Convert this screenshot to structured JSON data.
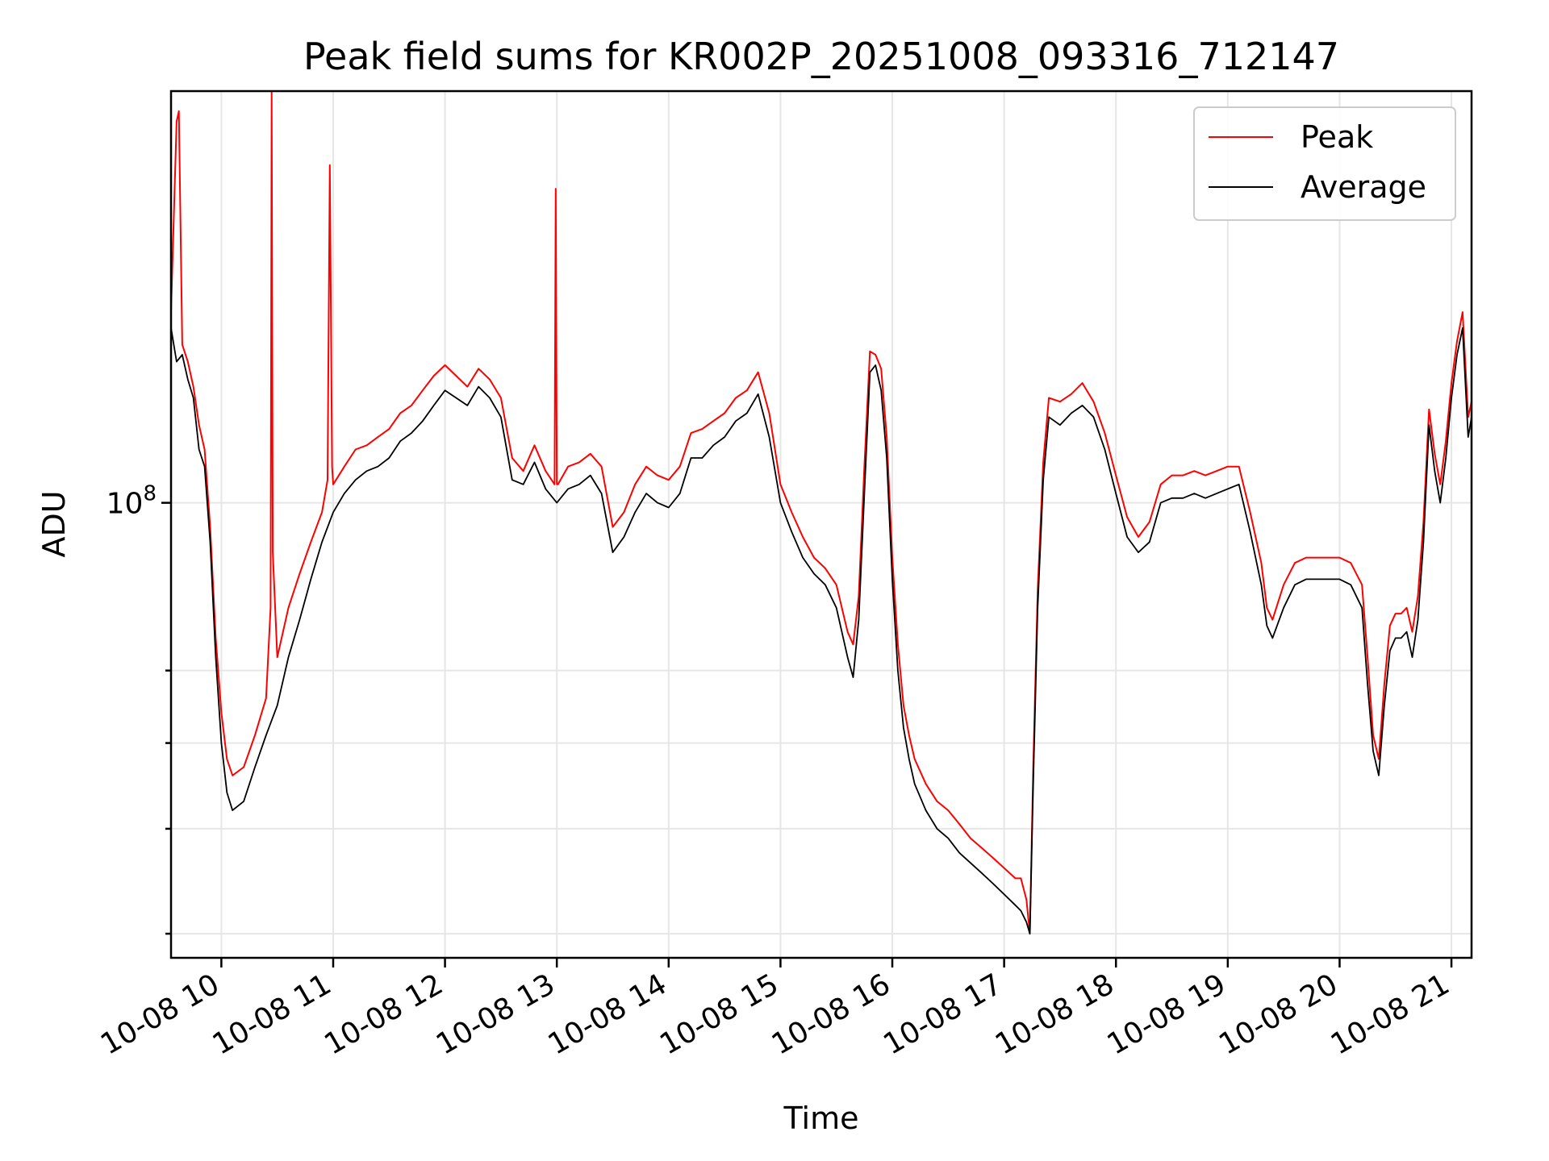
{
  "chart_data": {
    "type": "line",
    "title": "Peak field sums for KR002P_20251008_093316_712147",
    "xlabel": "Time",
    "ylabel": "ADU",
    "x_ticks": [
      "10-08 10",
      "10-08 11",
      "10-08 12",
      "10-08 13",
      "10-08 14",
      "10-08 15",
      "10-08 16",
      "10-08 17",
      "10-08 18",
      "10-08 19",
      "10-08 20",
      "10-08 21"
    ],
    "x_tick_hours": [
      10,
      11,
      12,
      13,
      14,
      15,
      16,
      17,
      18,
      19,
      20,
      21
    ],
    "xlim_hours": [
      9.55,
      21.18
    ],
    "y_scale": "log",
    "ylim": [
      38000000,
      240000000
    ],
    "y_tick_label": {
      "base": "10",
      "exp": "8"
    },
    "y_major_value": 100000000,
    "y_minor_values": [
      40000000,
      50000000,
      60000000,
      70000000
    ],
    "grid": true,
    "legend": {
      "position": "top-right",
      "entries": [
        "Peak",
        "Average"
      ]
    },
    "colors": {
      "peak": "#ff0000",
      "average": "#000000"
    },
    "series": [
      {
        "name": "Average",
        "x": [
          9.55,
          9.6,
          9.65,
          9.7,
          9.75,
          9.8,
          9.85,
          9.9,
          9.95,
          10.0,
          10.05,
          10.1,
          10.2,
          10.3,
          10.4,
          10.5,
          10.6,
          10.7,
          10.8,
          10.9,
          11.0,
          11.1,
          11.2,
          11.3,
          11.4,
          11.5,
          11.6,
          11.7,
          11.8,
          11.9,
          12.0,
          12.1,
          12.2,
          12.3,
          12.4,
          12.5,
          12.6,
          12.7,
          12.8,
          12.9,
          13.0,
          13.1,
          13.2,
          13.3,
          13.4,
          13.5,
          13.6,
          13.7,
          13.8,
          13.9,
          14.0,
          14.1,
          14.2,
          14.3,
          14.4,
          14.5,
          14.6,
          14.7,
          14.8,
          14.9,
          15.0,
          15.1,
          15.2,
          15.3,
          15.4,
          15.5,
          15.6,
          15.65,
          15.7,
          15.75,
          15.8,
          15.85,
          15.9,
          15.95,
          16.0,
          16.05,
          16.1,
          16.15,
          16.2,
          16.3,
          16.4,
          16.5,
          16.6,
          16.7,
          16.8,
          16.9,
          17.0,
          17.1,
          17.15,
          17.2,
          17.23,
          17.26,
          17.3,
          17.35,
          17.4,
          17.5,
          17.6,
          17.7,
          17.8,
          17.9,
          18.0,
          18.1,
          18.2,
          18.3,
          18.4,
          18.5,
          18.6,
          18.7,
          18.8,
          18.9,
          19.0,
          19.1,
          19.2,
          19.3,
          19.35,
          19.4,
          19.5,
          19.6,
          19.7,
          19.8,
          19.9,
          20.0,
          20.1,
          20.2,
          20.25,
          20.3,
          20.35,
          20.4,
          20.45,
          20.5,
          20.55,
          20.6,
          20.65,
          20.7,
          20.75,
          20.8,
          20.85,
          20.9,
          20.95,
          21.0,
          21.05,
          21.1,
          21.15,
          21.18
        ],
        "values": [
          145000000,
          135000000,
          137000000,
          130000000,
          125000000,
          112000000,
          108000000,
          92000000,
          72000000,
          60000000,
          54000000,
          52000000,
          53000000,
          57000000,
          61000000,
          65000000,
          72000000,
          78000000,
          85000000,
          92000000,
          98000000,
          102000000,
          105000000,
          107000000,
          108000000,
          110000000,
          114000000,
          116000000,
          119000000,
          123000000,
          127000000,
          125000000,
          123000000,
          128000000,
          125000000,
          120000000,
          105000000,
          104000000,
          109000000,
          103000000,
          100000000,
          103000000,
          104000000,
          106000000,
          102000000,
          90000000,
          93000000,
          98000000,
          102000000,
          100000000,
          99000000,
          102000000,
          110000000,
          110000000,
          113000000,
          115000000,
          119000000,
          121000000,
          126000000,
          115000000,
          100000000,
          94000000,
          89000000,
          86000000,
          84000000,
          80000000,
          72000000,
          69000000,
          78000000,
          102000000,
          132000000,
          134000000,
          127000000,
          110000000,
          85000000,
          70000000,
          62000000,
          58000000,
          55000000,
          52000000,
          50000000,
          49000000,
          47500000,
          46500000,
          45500000,
          44500000,
          43500000,
          42500000,
          42000000,
          41000000,
          40000000,
          55000000,
          80000000,
          105000000,
          120000000,
          118000000,
          121000000,
          123000000,
          120000000,
          112000000,
          102000000,
          93000000,
          90000000,
          92000000,
          100000000,
          101000000,
          101000000,
          102000000,
          101000000,
          102000000,
          103000000,
          104000000,
          94000000,
          84000000,
          77000000,
          75000000,
          80000000,
          84000000,
          85000000,
          85000000,
          85000000,
          85000000,
          84000000,
          80000000,
          68000000,
          59000000,
          56000000,
          65000000,
          73000000,
          75000000,
          75000000,
          76000000,
          72000000,
          78000000,
          92000000,
          118000000,
          107000000,
          100000000,
          110000000,
          125000000,
          137000000,
          145000000,
          115000000,
          120000000
        ]
      },
      {
        "name": "Peak",
        "x": [
          9.55,
          9.6,
          9.62,
          9.65,
          9.7,
          9.75,
          9.8,
          9.85,
          9.9,
          9.95,
          10.0,
          10.05,
          10.1,
          10.2,
          10.3,
          10.4,
          10.44,
          10.45,
          10.46,
          10.5,
          10.6,
          10.7,
          10.8,
          10.9,
          10.95,
          10.97,
          10.99,
          11.0,
          11.1,
          11.2,
          11.3,
          11.4,
          11.5,
          11.6,
          11.7,
          11.8,
          11.9,
          12.0,
          12.1,
          12.2,
          12.3,
          12.4,
          12.5,
          12.6,
          12.7,
          12.8,
          12.9,
          12.98,
          12.99,
          13.0,
          13.01,
          13.1,
          13.2,
          13.3,
          13.4,
          13.5,
          13.6,
          13.7,
          13.8,
          13.9,
          14.0,
          14.1,
          14.2,
          14.3,
          14.4,
          14.5,
          14.6,
          14.7,
          14.8,
          14.9,
          15.0,
          15.1,
          15.2,
          15.3,
          15.4,
          15.5,
          15.6,
          15.65,
          15.7,
          15.75,
          15.8,
          15.85,
          15.9,
          15.95,
          16.0,
          16.05,
          16.1,
          16.15,
          16.2,
          16.3,
          16.4,
          16.5,
          16.6,
          16.7,
          16.8,
          16.9,
          17.0,
          17.1,
          17.15,
          17.2,
          17.23,
          17.26,
          17.3,
          17.35,
          17.4,
          17.5,
          17.6,
          17.7,
          17.8,
          17.9,
          18.0,
          18.1,
          18.2,
          18.3,
          18.4,
          18.5,
          18.6,
          18.7,
          18.8,
          18.9,
          19.0,
          19.1,
          19.2,
          19.3,
          19.35,
          19.4,
          19.5,
          19.6,
          19.7,
          19.8,
          19.9,
          20.0,
          20.1,
          20.2,
          20.25,
          20.3,
          20.35,
          20.4,
          20.45,
          20.5,
          20.55,
          20.6,
          20.65,
          20.7,
          20.75,
          20.8,
          20.85,
          20.9,
          20.95,
          21.0,
          21.05,
          21.1,
          21.15,
          21.18
        ],
        "values": [
          150000000,
          225000000,
          230000000,
          140000000,
          135000000,
          128000000,
          118000000,
          112000000,
          95000000,
          75000000,
          64000000,
          58000000,
          56000000,
          57000000,
          61000000,
          66000000,
          80000000,
          240000000,
          90000000,
          72000000,
          80000000,
          86000000,
          92000000,
          98000000,
          105000000,
          205000000,
          108000000,
          104000000,
          108000000,
          112000000,
          113000000,
          115000000,
          117000000,
          121000000,
          123000000,
          127000000,
          131000000,
          134000000,
          131000000,
          128000000,
          133000000,
          130000000,
          125000000,
          110000000,
          107000000,
          113000000,
          107000000,
          104000000,
          195000000,
          104000000,
          104000000,
          108000000,
          109000000,
          111000000,
          108000000,
          95000000,
          98000000,
          104000000,
          108000000,
          106000000,
          105000000,
          108000000,
          116000000,
          117000000,
          119000000,
          121000000,
          125000000,
          127000000,
          132000000,
          121000000,
          104000000,
          98000000,
          93000000,
          89000000,
          87000000,
          84000000,
          76000000,
          74000000,
          82000000,
          108000000,
          138000000,
          137000000,
          133000000,
          115000000,
          89000000,
          74000000,
          65000000,
          61000000,
          58000000,
          55000000,
          53000000,
          52000000,
          50500000,
          49000000,
          48000000,
          47000000,
          46000000,
          45000000,
          45000000,
          43000000,
          40000000,
          57000000,
          83000000,
          109000000,
          125000000,
          124000000,
          126000000,
          129000000,
          124000000,
          116000000,
          106000000,
          97000000,
          93000000,
          96000000,
          104000000,
          106000000,
          106000000,
          107000000,
          106000000,
          107000000,
          108000000,
          108000000,
          98000000,
          88000000,
          80000000,
          78000000,
          84000000,
          88000000,
          89000000,
          89000000,
          89000000,
          89000000,
          88000000,
          84000000,
          72000000,
          61000000,
          58000000,
          68000000,
          77000000,
          79000000,
          79000000,
          80000000,
          76000000,
          82000000,
          96000000,
          122000000,
          111000000,
          104000000,
          114000000,
          129000000,
          141000000,
          150000000,
          120000000,
          124000000
        ]
      }
    ]
  }
}
